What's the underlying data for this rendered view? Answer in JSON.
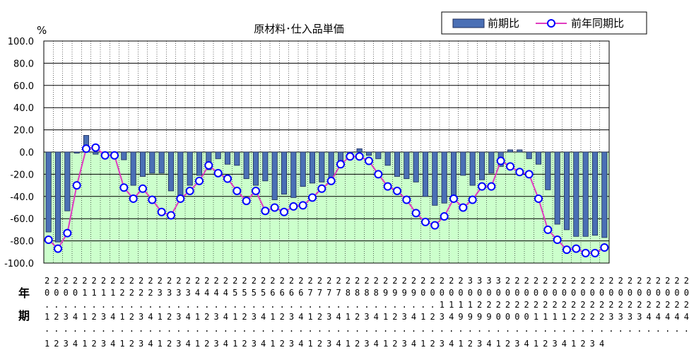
{
  "chart_data": {
    "type": "bar+line",
    "title": "原材料･仕入品単価",
    "unit_label": "%",
    "ylim": [
      -100,
      100
    ],
    "yticks": [
      "100.0",
      "80.0",
      "60.0",
      "40.0",
      "20.0",
      "0.0",
      "-20.0",
      "-40.0",
      "-60.0",
      "-80.0",
      "-100.0"
    ],
    "plot_background_positive": "#ffffff",
    "plot_background_negative": "#ccffcc",
    "bar_color": "#4a6fb5",
    "line_color": "#e03cc0",
    "marker_color": "#0000ff",
    "grid": true,
    "legend_position": "top-right",
    "row_labels": {
      "year": "年",
      "period": "期"
    },
    "categories": [
      "2000.1",
      "2000.2",
      "2000.3",
      "2000.4",
      "2001.1",
      "2001.2",
      "2001.3",
      "2001.4",
      "2002.1",
      "2002.2",
      "2002.3",
      "2002.4",
      "2003.1",
      "2003.2",
      "2003.3",
      "2003.4",
      "2004.1",
      "2004.2",
      "2004.3",
      "2004.4",
      "2005.1",
      "2005.2",
      "2005.3",
      "2005.4",
      "2006.1",
      "2006.2",
      "2006.3",
      "2006.4",
      "2007.1",
      "2007.2",
      "2007.3",
      "2007.4",
      "2008.1",
      "2008.2",
      "2008.3",
      "2008.4",
      "2009.1",
      "2009.2",
      "2009.3",
      "2009.4",
      "2010.1",
      "2010.2",
      "2010.3",
      "2010.4",
      "2011.1",
      "2011.2",
      "2011.3",
      "2011.4",
      "2012.1",
      "2012.2",
      "2012.3",
      "2012.4",
      "2013.1",
      "2013.2",
      "2013.3",
      "2013.4",
      "2014.1",
      "2014.2",
      "2014.3",
      "2014.4"
    ],
    "x_label_rows": [
      [
        "2",
        "2",
        "2",
        "2",
        "2",
        "2",
        "2",
        "2",
        "2",
        "2",
        "2",
        "2",
        "2",
        "2",
        "2",
        "2",
        "2",
        "2",
        "2",
        "2",
        "2",
        "2",
        "2",
        "2",
        "2",
        "2",
        "2",
        "2",
        "2",
        "2",
        "2",
        "2",
        "2",
        "2",
        "2",
        "2",
        "2",
        "2",
        "2",
        "2",
        "2",
        "2",
        "3",
        "3",
        "3",
        "3",
        "2",
        "2",
        "2",
        "2",
        "2",
        "2",
        "2",
        "2",
        "2",
        "2",
        "2",
        "2",
        "2",
        "2",
        "2",
        "2",
        "2",
        "2",
        "2",
        "2",
        "2",
        "2",
        "2",
        "2",
        "2",
        "2",
        "2",
        "2",
        "2",
        "2",
        "2",
        "2",
        "2",
        "2",
        "2",
        "2",
        "2",
        "2",
        "2",
        "2",
        "2",
        "2",
        "2",
        "2",
        "2",
        "2",
        "2",
        "2",
        "2",
        "2"
      ],
      [
        "0",
        "0",
        "0",
        "0",
        "1",
        "1",
        "1",
        "1",
        "2",
        "2",
        "2",
        "2",
        "3",
        "3",
        "3",
        "3",
        "4",
        "4",
        "4",
        "4",
        "5",
        "5",
        "5",
        "5",
        "6",
        "6",
        "6",
        "6",
        "7",
        "7",
        "7",
        "7",
        "8",
        "8",
        "8",
        "8",
        "9",
        "9",
        "9",
        "9",
        "0",
        "0",
        "0",
        "0",
        "0",
        "0",
        "0",
        "0",
        "0",
        "0",
        "0",
        "0",
        "0",
        "0",
        "0",
        "0",
        "0",
        "0",
        "0",
        "0",
        "0",
        "0",
        "0",
        "0",
        "0",
        "0",
        "0",
        "0",
        "0",
        "0",
        "0",
        "0",
        "0",
        "0",
        "0",
        "0",
        "0",
        "0",
        "0",
        "0",
        "0",
        "0",
        "0",
        "0",
        "0",
        "0",
        "0",
        "0",
        "0",
        "0",
        "0",
        "0",
        "0",
        "0",
        "0",
        "0"
      ],
      [
        ".",
        ".",
        ".",
        ".",
        ".",
        ".",
        ".",
        ".",
        ".",
        ".",
        ".",
        ".",
        ".",
        ".",
        ".",
        ".",
        ".",
        ".",
        ".",
        ".",
        ".",
        ".",
        ".",
        ".",
        ".",
        ".",
        ".",
        ".",
        ".",
        ".",
        ".",
        ".",
        ".",
        ".",
        ".",
        ".",
        ".",
        ".",
        ".",
        ".",
        ".",
        ".",
        ".",
        ".",
        ".",
        ".",
        "1",
        "1",
        "1",
        "1",
        "2",
        "2",
        "2",
        "2",
        "2",
        "2",
        "2",
        "2",
        "2",
        "2",
        "2",
        "2",
        "2",
        "2",
        "2",
        "2",
        "2",
        "2",
        "2",
        "2",
        "2",
        "2",
        "2",
        "2",
        "2",
        "2",
        "2",
        "2",
        "2",
        "2",
        "2",
        "2",
        "2",
        "2",
        "2",
        "2",
        "2",
        "2",
        "2",
        "2",
        "2",
        "2",
        "2",
        "2",
        "2",
        "2"
      ],
      [
        "1",
        "2",
        "3",
        "4",
        "1",
        "2",
        "3",
        "4",
        "1",
        "2",
        "3",
        "4",
        "1",
        "2",
        "3",
        "4",
        "1",
        "2",
        "3",
        "4",
        "1",
        "2",
        "3",
        "4",
        "1",
        "2",
        "3",
        "4",
        "1",
        "2",
        "3",
        "4",
        "1",
        "2",
        "3",
        "4",
        "1",
        "2",
        "3",
        "4",
        "1",
        "2",
        "3",
        "4",
        "1",
        "2",
        "3",
        "4",
        "9",
        "9",
        "9",
        "9",
        "0",
        "0",
        "0",
        "0",
        "1",
        "1",
        "1",
        "1",
        "2",
        "2",
        "2",
        "2",
        "2",
        "2",
        "2",
        "2",
        "3",
        "3",
        "3",
        "3",
        "3",
        "3",
        "3",
        "3",
        "4",
        "4",
        "4",
        "4",
        "4",
        "4",
        "4",
        "4",
        "4",
        "4",
        "4",
        "4",
        "4",
        "4",
        "4",
        "4",
        "4",
        "4",
        "4",
        "4"
      ]
    ],
    "x_labels_printed": {
      "row1": "2222222222222222222222222222222222222222222223333222222222222222222222222222222222",
      "row2": "0000111122223333444455556666777788889999000000000000000000000000000000000000000000",
      "row3": "..........................................1111222222222222222222222222222222",
      "row4": "123412341234123412341234123412341234123412349999000011112222333344444",
      "row5": "..........................................................................",
      "row6": "123412341234123412341234123412341234123412341234123412341234"
    },
    "series": [
      {
        "name": "前期比",
        "kind": "bar",
        "values": [
          -72,
          -81,
          -53,
          -1,
          15,
          -2,
          -1,
          -3,
          -7,
          -30,
          -22,
          -19,
          -19,
          -35,
          -39,
          -30,
          -21,
          -16,
          -6,
          -11,
          -12,
          -24,
          -30,
          -26,
          -43,
          -38,
          -41,
          -31,
          -28,
          -27,
          -23,
          -11,
          -1,
          3,
          -3,
          -6,
          -12,
          -22,
          -24,
          -27,
          -40,
          -48,
          -46,
          -44,
          -21,
          -30,
          -25,
          -19,
          -13,
          2,
          2,
          -6,
          -11,
          -34,
          -65,
          -70,
          -76,
          -76,
          -75,
          -77
        ]
      },
      {
        "name": "前年同期比",
        "kind": "line",
        "values": [
          -79,
          -87,
          -73,
          -30,
          3,
          4,
          -3,
          -3,
          -32,
          -42,
          -33,
          -43,
          -54,
          -57,
          -42,
          -35,
          -26,
          -12,
          -19,
          -24,
          -35,
          -44,
          -35,
          -53,
          -50,
          -54,
          -49,
          -48,
          -41,
          -33,
          -26,
          -11,
          -4,
          -4,
          -8,
          -20,
          -31,
          -35,
          -43,
          -55,
          -63,
          -66,
          -58,
          -42,
          -50,
          -43,
          -31,
          -31,
          -8,
          -13,
          -18,
          -20,
          -42,
          -70,
          -79,
          -88,
          -87,
          -91,
          -91,
          -86
        ]
      }
    ]
  }
}
